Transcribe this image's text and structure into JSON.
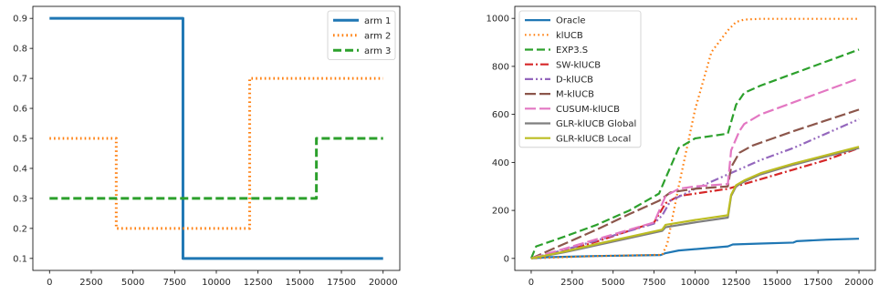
{
  "chart_data": [
    {
      "type": "line",
      "title": "",
      "xlabel": "",
      "ylabel": "",
      "xlim": [
        -1000,
        21000
      ],
      "ylim": [
        0.06,
        0.94
      ],
      "xticks": [
        0,
        2500,
        5000,
        7500,
        10000,
        12500,
        15000,
        17500,
        20000
      ],
      "yticks": [
        0.1,
        0.2,
        0.3,
        0.4,
        0.5,
        0.6,
        0.7,
        0.8,
        0.9
      ],
      "legend_position": "top-right",
      "grid": false,
      "series": [
        {
          "name": "arm 1",
          "color": "#1f77b4",
          "style": "solid",
          "x": [
            0,
            8000,
            8000,
            20000
          ],
          "y": [
            0.9,
            0.9,
            0.1,
            0.1
          ]
        },
        {
          "name": "arm 2",
          "color": "#ff7f0e",
          "style": "dotted",
          "x": [
            0,
            4000,
            4000,
            12000,
            12000,
            20000
          ],
          "y": [
            0.5,
            0.5,
            0.2,
            0.2,
            0.7,
            0.7
          ]
        },
        {
          "name": "arm 3",
          "color": "#2ca02c",
          "style": "dashed",
          "x": [
            0,
            16000,
            16000,
            20000
          ],
          "y": [
            0.3,
            0.3,
            0.5,
            0.5
          ]
        }
      ]
    },
    {
      "type": "line",
      "title": "",
      "xlabel": "",
      "ylabel": "",
      "xlim": [
        -1000,
        21000
      ],
      "ylim": [
        -50,
        1050
      ],
      "xticks": [
        0,
        2500,
        5000,
        7500,
        10000,
        12500,
        15000,
        17500,
        20000
      ],
      "yticks": [
        0,
        200,
        400,
        600,
        800,
        1000
      ],
      "legend_position": "top-left",
      "grid": false,
      "series": [
        {
          "name": "Oracle",
          "color": "#1f77b4",
          "style": "solid",
          "x": [
            0,
            1000,
            4000,
            7900,
            8200,
            9000,
            12000,
            12300,
            14000,
            16000,
            16200,
            18000,
            20000
          ],
          "y": [
            0,
            5,
            10,
            14,
            22,
            33,
            50,
            58,
            62,
            66,
            72,
            78,
            82
          ]
        },
        {
          "name": "klUCB",
          "color": "#ff7f0e",
          "style": "dotted",
          "x": [
            0,
            4000,
            8000,
            8300,
            9000,
            10000,
            11000,
            12000,
            12500,
            13000,
            14000,
            16000,
            20000
          ],
          "y": [
            0,
            10,
            15,
            60,
            300,
            620,
            860,
            950,
            985,
            995,
            998,
            998,
            998
          ]
        },
        {
          "name": "EXP3.S",
          "color": "#2ca02c",
          "style": "dashed",
          "x": [
            0,
            300,
            2000,
            4000,
            6000,
            7800,
            8300,
            9000,
            10000,
            12000,
            12500,
            13000,
            14000,
            16000,
            18000,
            20000
          ],
          "y": [
            0,
            50,
            90,
            140,
            200,
            270,
            350,
            460,
            500,
            520,
            640,
            690,
            720,
            770,
            820,
            870
          ]
        },
        {
          "name": "SW-klUCB",
          "color": "#d62728",
          "style": "dashdot",
          "x": [
            0,
            2000,
            4000,
            7500,
            8200,
            9000,
            10000,
            11000,
            12000,
            13000,
            14000,
            16000,
            18000,
            20000
          ],
          "y": [
            0,
            30,
            70,
            150,
            230,
            260,
            270,
            280,
            290,
            310,
            330,
            370,
            410,
            460
          ]
        },
        {
          "name": "D-klUCB",
          "color": "#9467bd",
          "style": "dashdotdot",
          "x": [
            0,
            2000,
            4000,
            7500,
            8000,
            8500,
            10000,
            12000,
            12500,
            14000,
            16000,
            18000,
            20000
          ],
          "y": [
            0,
            35,
            75,
            145,
            180,
            240,
            290,
            350,
            365,
            410,
            460,
            520,
            580
          ]
        },
        {
          "name": "M-klUCB",
          "color": "#8c564b",
          "style": "longdash",
          "x": [
            0,
            2000,
            4000,
            6000,
            7800,
            8500,
            10000,
            12000,
            12200,
            12700,
            13500,
            16000,
            18000,
            20000
          ],
          "y": [
            0,
            60,
            120,
            185,
            240,
            275,
            290,
            300,
            380,
            440,
            470,
            530,
            575,
            620
          ]
        },
        {
          "name": "CUSUM-klUCB",
          "color": "#e377c2",
          "style": "longdash",
          "x": [
            0,
            2000,
            4000,
            7500,
            8200,
            9000,
            10000,
            12000,
            12200,
            12700,
            13000,
            14000,
            16000,
            18000,
            20000
          ],
          "y": [
            0,
            40,
            80,
            150,
            260,
            290,
            300,
            310,
            450,
            530,
            560,
            600,
            650,
            700,
            750
          ]
        },
        {
          "name": "GLR-klUCB Global",
          "color": "#7f7f7f",
          "style": "solid",
          "x": [
            0,
            2000,
            4000,
            6000,
            8000,
            8200,
            10000,
            12000,
            12200,
            12500,
            13000,
            14000,
            16000,
            18000,
            20000
          ],
          "y": [
            0,
            25,
            55,
            85,
            115,
            130,
            150,
            170,
            260,
            300,
            320,
            350,
            390,
            425,
            460
          ]
        },
        {
          "name": "GLR-klUCB Local",
          "color": "#bcbd22",
          "style": "solid",
          "x": [
            0,
            2000,
            4000,
            6000,
            8000,
            8200,
            10000,
            12000,
            12200,
            12500,
            13000,
            14000,
            16000,
            18000,
            20000
          ],
          "y": [
            0,
            28,
            60,
            90,
            120,
            140,
            160,
            180,
            265,
            305,
            325,
            355,
            395,
            430,
            465
          ]
        }
      ]
    }
  ]
}
